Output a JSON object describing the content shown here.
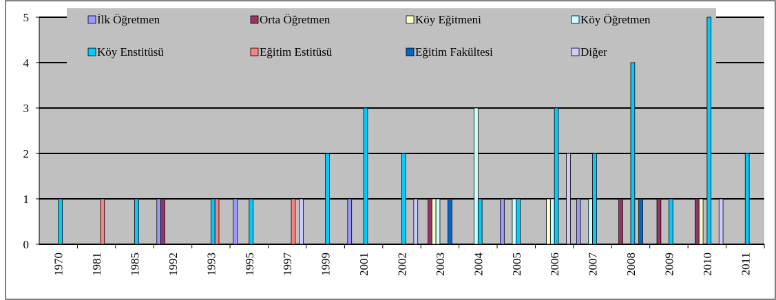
{
  "chart_data": {
    "type": "bar",
    "categories": [
      "1970",
      "1981",
      "1985",
      "1992",
      "1993",
      "1995",
      "1997",
      "1999",
      "2001",
      "2002",
      "2003",
      "2004",
      "2005",
      "2006",
      "2007",
      "2008",
      "2009",
      "2010",
      "2011"
    ],
    "series": [
      {
        "name": "İlk Öğretmen",
        "color": "#9999ff",
        "values": [
          null,
          null,
          null,
          1,
          null,
          1,
          null,
          null,
          1,
          null,
          null,
          null,
          1,
          null,
          1,
          null,
          null,
          null,
          null
        ]
      },
      {
        "name": "Orta Öğretmen",
        "color": "#993366",
        "values": [
          null,
          null,
          null,
          1,
          null,
          null,
          null,
          null,
          null,
          null,
          1,
          null,
          null,
          null,
          null,
          1,
          1,
          1,
          null
        ]
      },
      {
        "name": "Köy Eğitmeni",
        "color": "#ffffcc",
        "values": [
          null,
          null,
          null,
          null,
          null,
          null,
          null,
          null,
          null,
          null,
          1,
          null,
          null,
          1,
          null,
          null,
          null,
          1,
          null
        ]
      },
      {
        "name": "Köy Öğretmen",
        "color": "#ccffff",
        "values": [
          null,
          null,
          null,
          null,
          null,
          null,
          null,
          null,
          null,
          null,
          1,
          3,
          1,
          1,
          1,
          null,
          null,
          null,
          null
        ]
      },
      {
        "name": "Köy Enstitüsü",
        "color": "#00ccff",
        "values": [
          1,
          null,
          1,
          null,
          1,
          1,
          null,
          2,
          3,
          2,
          null,
          1,
          1,
          3,
          2,
          4,
          1,
          5,
          2
        ]
      },
      {
        "name": "Eğitim Estitüsü",
        "color": "#ff8080",
        "values": [
          null,
          1,
          null,
          null,
          1,
          null,
          1,
          null,
          null,
          null,
          null,
          null,
          null,
          null,
          null,
          null,
          null,
          null,
          null
        ]
      },
      {
        "name": "Eğitim Fakültesi",
        "color": "#0066cc",
        "values": [
          null,
          null,
          null,
          null,
          null,
          null,
          null,
          null,
          null,
          null,
          1,
          null,
          null,
          null,
          null,
          1,
          null,
          null,
          null
        ]
      },
      {
        "name": "Diğer",
        "color": "#ccccff",
        "values": [
          null,
          null,
          null,
          null,
          null,
          null,
          1,
          null,
          null,
          1,
          null,
          null,
          null,
          2,
          null,
          null,
          null,
          1,
          null
        ]
      }
    ],
    "ylim": [
      0,
      5
    ],
    "yticks": [
      0,
      1,
      2,
      3,
      4,
      5
    ],
    "grid": true
  }
}
